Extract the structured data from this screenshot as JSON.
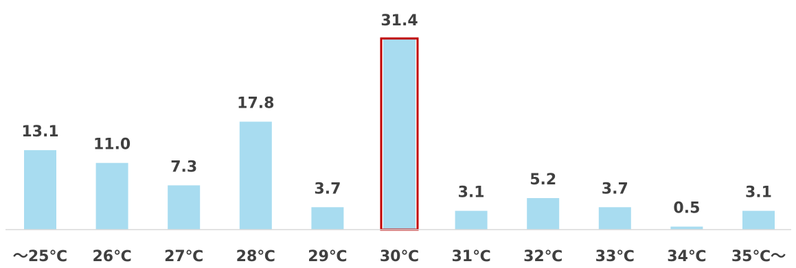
{
  "chart_data": {
    "type": "bar",
    "categories": [
      "～25℃",
      "26℃",
      "27℃",
      "28℃",
      "29℃",
      "30℃",
      "31℃",
      "32℃",
      "33℃",
      "34℃",
      "35℃～"
    ],
    "values": [
      13.1,
      11.0,
      7.3,
      17.8,
      3.7,
      31.4,
      3.1,
      5.2,
      3.7,
      0.5,
      3.1
    ],
    "value_labels": [
      "13.1",
      "11.0",
      "7.3",
      "17.8",
      "3.7",
      "31.4",
      "3.1",
      "5.2",
      "3.7",
      "0.5",
      "3.1"
    ],
    "title": "",
    "xlabel": "",
    "ylabel": "",
    "ylim": [
      0,
      35
    ],
    "grid": false,
    "highlight_index": 5,
    "colors": {
      "bar": "#a8dcf0",
      "highlight_border": "#c00000",
      "axis": "#d9d9d9",
      "text": "#404040"
    }
  }
}
